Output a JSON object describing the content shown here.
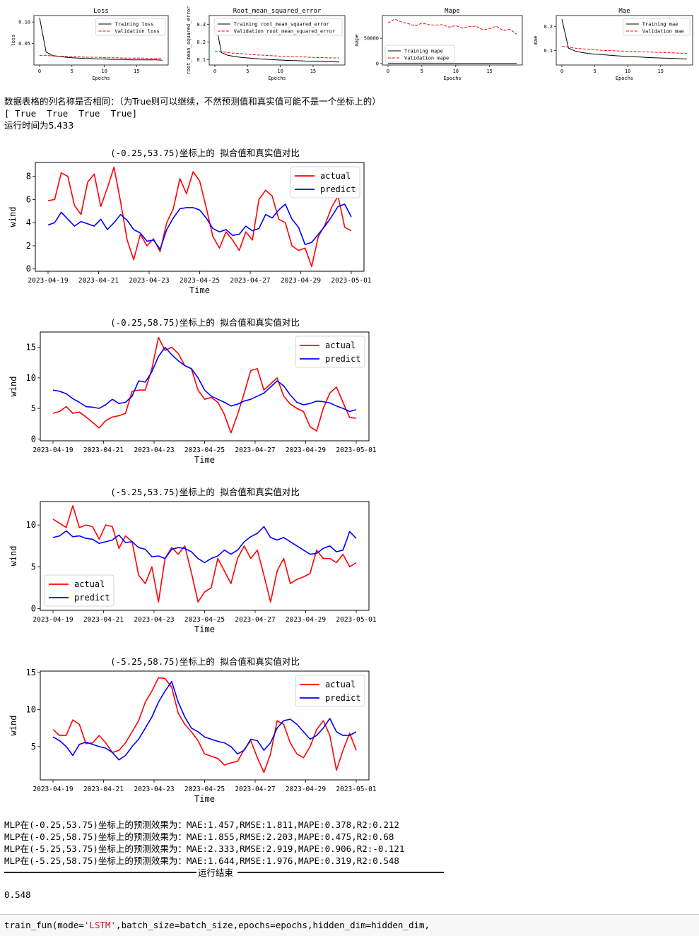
{
  "training_charts": [
    {
      "title": "Loss",
      "ylabel": "loss",
      "xlabel": "Epochs",
      "xticks": [
        "0",
        "5",
        "10",
        "15"
      ],
      "yticks": [
        "0.05",
        "0.10"
      ],
      "ylim": [
        0,
        0.115
      ],
      "train_label": "Training loss",
      "val_label": "Validation loss",
      "train": [
        0.11,
        0.03,
        0.022,
        0.02,
        0.018,
        0.017,
        0.016,
        0.015,
        0.015,
        0.014,
        0.014,
        0.013,
        0.013,
        0.013,
        0.012,
        0.012,
        0.012,
        0.012,
        0.012,
        0.011
      ],
      "val": [
        0.022,
        0.022,
        0.021,
        0.02,
        0.02,
        0.019,
        0.019,
        0.018,
        0.018,
        0.018,
        0.017,
        0.017,
        0.017,
        0.016,
        0.016,
        0.016,
        0.016,
        0.015,
        0.015,
        0.015
      ],
      "legend": "top-right"
    },
    {
      "title": "Root_mean_squared_error",
      "ylabel": "root_mean_squared_error",
      "xlabel": "Epochs",
      "xticks": [
        "0",
        "5",
        "10",
        "15"
      ],
      "yticks": [
        "0.1",
        "0.2",
        "0.3"
      ],
      "ylim": [
        0.07,
        0.35
      ],
      "train_label": "Training root_mean_squared_error",
      "val_label": "Validation root_mean_squared_error",
      "train": [
        0.33,
        0.14,
        0.125,
        0.118,
        0.113,
        0.11,
        0.107,
        0.104,
        0.102,
        0.1,
        0.098,
        0.096,
        0.095,
        0.094,
        0.092,
        0.091,
        0.09,
        0.089,
        0.088,
        0.087
      ],
      "val": [
        0.148,
        0.145,
        0.14,
        0.137,
        0.134,
        0.131,
        0.128,
        0.126,
        0.124,
        0.122,
        0.12,
        0.119,
        0.117,
        0.116,
        0.115,
        0.113,
        0.112,
        0.111,
        0.11,
        0.11
      ],
      "legend": "top-right"
    },
    {
      "title": "Mape",
      "ylabel": "mape",
      "xlabel": "Epochs",
      "xticks": [
        "0",
        "5",
        "10",
        "15"
      ],
      "yticks": [
        "0",
        "50000"
      ],
      "ylim": [
        -3000,
        95000
      ],
      "train_label": "Training mape",
      "val_label": "Validation mape",
      "train": [
        120,
        100,
        95,
        92,
        90,
        88,
        86,
        85,
        84,
        83,
        82,
        81,
        80,
        79,
        78,
        77,
        77,
        76,
        76,
        75
      ],
      "val": [
        80000,
        88000,
        82000,
        79000,
        74000,
        80000,
        77000,
        76000,
        77000,
        72000,
        75000,
        70000,
        73000,
        74000,
        67000,
        69000,
        74000,
        65000,
        68000,
        58000
      ],
      "legend": "bottom-left"
    },
    {
      "title": "Mae",
      "ylabel": "mae",
      "xlabel": "Epochs",
      "xticks": [
        "0",
        "5",
        "10",
        "15"
      ],
      "yticks": [
        "0.1",
        "0.2"
      ],
      "ylim": [
        0.04,
        0.245
      ],
      "train_label": "Training mae",
      "val_label": "Validation mae",
      "train": [
        0.23,
        0.11,
        0.098,
        0.092,
        0.088,
        0.085,
        0.083,
        0.081,
        0.079,
        0.077,
        0.075,
        0.074,
        0.073,
        0.071,
        0.07,
        0.069,
        0.068,
        0.067,
        0.066,
        0.065
      ],
      "val": [
        0.117,
        0.114,
        0.11,
        0.107,
        0.105,
        0.103,
        0.101,
        0.1,
        0.099,
        0.098,
        0.097,
        0.096,
        0.095,
        0.094,
        0.093,
        0.092,
        0.091,
        0.09,
        0.089,
        0.088
      ],
      "legend": "top-right"
    }
  ],
  "output_lines": {
    "line1": "数据表格的列名称是否相同：（为True则可以继续，不然预测值和真实值可能不是一个坐标上的）",
    "line2": "[ True  True  True  True]",
    "line3": "运行时间为5.433"
  },
  "fit_charts": [
    {
      "title": "(-0.25,53.75)坐标上的 拟合值和真实值对比",
      "ylabel": "wind",
      "xlabel": "Time",
      "yticks": [
        "0",
        "2",
        "4",
        "6",
        "8"
      ],
      "ylim": [
        -0.2,
        9.2
      ],
      "legend": "top-right",
      "xticks": [
        "2023-04-19",
        "2023-04-21",
        "2023-04-23",
        "2023-04-25",
        "2023-04-27",
        "2023-04-29",
        "2023-05-01"
      ],
      "actual": [
        5.9,
        6.0,
        8.3,
        8.0,
        5.5,
        4.7,
        7.5,
        8.2,
        5.4,
        7.0,
        8.8,
        5.8,
        2.5,
        0.8,
        3.0,
        2.0,
        2.6,
        1.5,
        4.0,
        5.2,
        7.8,
        6.5,
        8.4,
        7.6,
        5.3,
        2.8,
        1.8,
        3.2,
        2.5,
        1.6,
        3.2,
        2.5,
        6.0,
        6.8,
        6.3,
        4.3,
        4.0,
        2.0,
        1.6,
        1.8,
        0.2,
        2.8,
        3.8,
        5.3,
        6.3,
        3.6,
        3.3
      ],
      "predict": [
        3.8,
        4.0,
        4.9,
        4.3,
        3.7,
        4.1,
        3.9,
        3.7,
        4.3,
        3.4,
        4.0,
        4.7,
        4.2,
        3.4,
        3.1,
        2.4,
        2.5,
        1.7,
        3.4,
        4.4,
        5.2,
        5.3,
        5.3,
        5.1,
        4.4,
        3.5,
        3.2,
        3.4,
        2.9,
        3.0,
        3.7,
        3.3,
        3.5,
        4.7,
        4.4,
        5.1,
        5.6,
        4.3,
        3.6,
        2.1,
        2.3,
        3.0,
        3.7,
        4.5,
        5.4,
        5.6,
        4.5
      ],
      "xlim": [
        0,
        46
      ]
    },
    {
      "title": "(-0.25,58.75)坐标上的 拟合值和真实值对比",
      "ylabel": "wind",
      "xlabel": "Time",
      "yticks": [
        "0",
        "5",
        "10",
        "15"
      ],
      "ylim": [
        -0.3,
        17.5
      ],
      "legend": "top-right",
      "xticks": [
        "2023-04-19",
        "2023-04-21",
        "2023-04-23",
        "2023-04-25",
        "2023-04-27",
        "2023-04-29",
        "2023-05-01"
      ],
      "actual": [
        4.2,
        4.5,
        5.3,
        4.2,
        4.4,
        3.6,
        2.7,
        1.8,
        3.0,
        3.6,
        3.8,
        4.2,
        7.8,
        8.0,
        8.0,
        11.5,
        16.6,
        14.5,
        15.0,
        14.0,
        12.0,
        11.5,
        8.0,
        6.5,
        6.8,
        6.0,
        4.0,
        1.0,
        4.0,
        7.5,
        11.2,
        11.5,
        8.0,
        9.0,
        10.0,
        7.0,
        5.7,
        5.0,
        4.5,
        2.0,
        1.3,
        5.0,
        7.5,
        8.5,
        6.0,
        3.5,
        3.4
      ],
      "predict": [
        8.0,
        7.8,
        7.4,
        6.6,
        6.0,
        5.3,
        5.2,
        5.0,
        5.6,
        6.5,
        5.8,
        6.0,
        7.0,
        9.5,
        9.3,
        11.0,
        13.5,
        15.0,
        13.8,
        12.8,
        12.0,
        11.5,
        10.0,
        8.0,
        7.0,
        6.5,
        6.0,
        5.4,
        5.7,
        6.2,
        6.5,
        7.0,
        7.5,
        8.5,
        9.5,
        8.7,
        7.2,
        6.0,
        5.6,
        5.8,
        6.2,
        6.1,
        5.9,
        5.4,
        5.0,
        4.5,
        4.8
      ],
      "xlim": [
        0,
        46
      ]
    },
    {
      "title": "(-5.25,53.75)坐标上的 拟合值和真实值对比",
      "ylabel": "wind",
      "xlabel": "Time",
      "yticks": [
        "0",
        "5",
        "10"
      ],
      "ylim": [
        -0.2,
        12.8
      ],
      "legend": "bottom-left",
      "xticks": [
        "2023-04-19",
        "2023-04-21",
        "2023-04-23",
        "2023-04-25",
        "2023-04-27",
        "2023-04-29",
        "2023-05-01"
      ],
      "actual": [
        10.7,
        10.2,
        9.7,
        12.3,
        9.7,
        10.0,
        9.8,
        8.3,
        10.0,
        9.8,
        7.2,
        8.7,
        8.0,
        4.0,
        3.0,
        5.0,
        0.8,
        6.0,
        7.3,
        6.5,
        7.5,
        4.3,
        0.8,
        2.0,
        2.5,
        6.0,
        4.5,
        3.0,
        6.0,
        7.5,
        6.0,
        7.0,
        4.0,
        0.8,
        4.5,
        6.0,
        3.0,
        3.5,
        3.8,
        4.2,
        7.0,
        6.0,
        6.0,
        5.5,
        6.5,
        5.0,
        5.5
      ],
      "predict": [
        8.5,
        8.7,
        9.3,
        8.6,
        8.7,
        8.4,
        8.3,
        7.8,
        8.0,
        8.2,
        8.8,
        7.9,
        8.0,
        7.3,
        7.1,
        6.2,
        6.3,
        6.0,
        7.1,
        7.3,
        7.2,
        6.8,
        6.0,
        5.5,
        6.0,
        6.3,
        7.0,
        6.5,
        7.0,
        8.0,
        8.6,
        9.0,
        9.8,
        8.5,
        8.2,
        8.5,
        8.0,
        7.5,
        7.0,
        6.5,
        6.6,
        7.2,
        7.5,
        6.8,
        7.0,
        9.2,
        8.4
      ],
      "xlim": [
        0,
        46
      ]
    },
    {
      "title": "(-5.25,58.75)坐标上的 拟合值和真实值对比",
      "ylabel": "wind",
      "xlabel": "Time",
      "yticks": [
        "5",
        "10",
        "15"
      ],
      "ylim": [
        0.5,
        15.2
      ],
      "legend": "top-right",
      "xticks": [
        "2023-04-19",
        "2023-04-21",
        "2023-04-23",
        "2023-04-25",
        "2023-04-27",
        "2023-04-29",
        "2023-05-01"
      ],
      "actual": [
        7.3,
        6.5,
        6.5,
        8.6,
        8.0,
        5.4,
        5.5,
        6.5,
        5.5,
        4.2,
        4.5,
        5.5,
        7.0,
        8.5,
        11.0,
        12.5,
        14.3,
        14.2,
        13.0,
        9.5,
        8.0,
        7.0,
        5.8,
        4.0,
        3.7,
        3.4,
        2.5,
        2.8,
        3.0,
        4.6,
        5.8,
        3.5,
        1.5,
        4.0,
        8.5,
        8.0,
        5.5,
        4.0,
        3.5,
        5.0,
        7.3,
        8.5,
        6.5,
        1.8,
        4.5,
        6.8,
        4.5
      ],
      "predict": [
        6.3,
        5.8,
        5.0,
        3.8,
        5.3,
        5.6,
        5.3,
        5.0,
        4.8,
        4.2,
        3.2,
        3.8,
        5.0,
        6.0,
        7.5,
        9.0,
        11.0,
        12.5,
        13.8,
        11.0,
        9.0,
        7.5,
        7.0,
        6.3,
        6.0,
        5.7,
        5.5,
        5.0,
        4.0,
        4.5,
        6.0,
        5.8,
        4.5,
        5.5,
        7.5,
        8.5,
        8.7,
        8.0,
        7.0,
        6.0,
        6.5,
        7.5,
        8.8,
        7.0,
        6.5,
        6.5,
        7.0
      ],
      "xlim": [
        0,
        46
      ]
    }
  ],
  "legend_labels": {
    "actual": "actual",
    "predict": "predict"
  },
  "results": {
    "r1": "MLP在(-0.25,53.75)坐标上的预测效果为：MAE:1.457,RMSE:1.811,MAPE:0.378,R2:0.212",
    "r2": "MLP在(-0.25,58.75)坐标上的预测效果为：MAE:1.855,RMSE:2.203,MAPE:0.475,R2:0.68",
    "r3": "MLP在(-5.25,53.75)坐标上的预测效果为：MAE:2.333,RMSE:2.919,MAPE:0.906,R2:-0.121",
    "r4": "MLP在(-5.25,58.75)坐标上的预测效果为：MAE:1.644,RMSE:1.976,MAPE:0.319,R2:0.548",
    "end_label": "运行结束",
    "return_value": "0.548"
  },
  "code": {
    "c_fn": "train_fun(mode=",
    "c_str": "'LSTM'",
    "c_rest": ",batch_size=batch_size,epochs=epochs,hidden_dim=hidden_dim,"
  },
  "colors": {
    "actual": "#ff0000",
    "predict": "#0000ff",
    "training": "#000000",
    "validation": "#ff0000",
    "code_string": "#ba2121"
  }
}
